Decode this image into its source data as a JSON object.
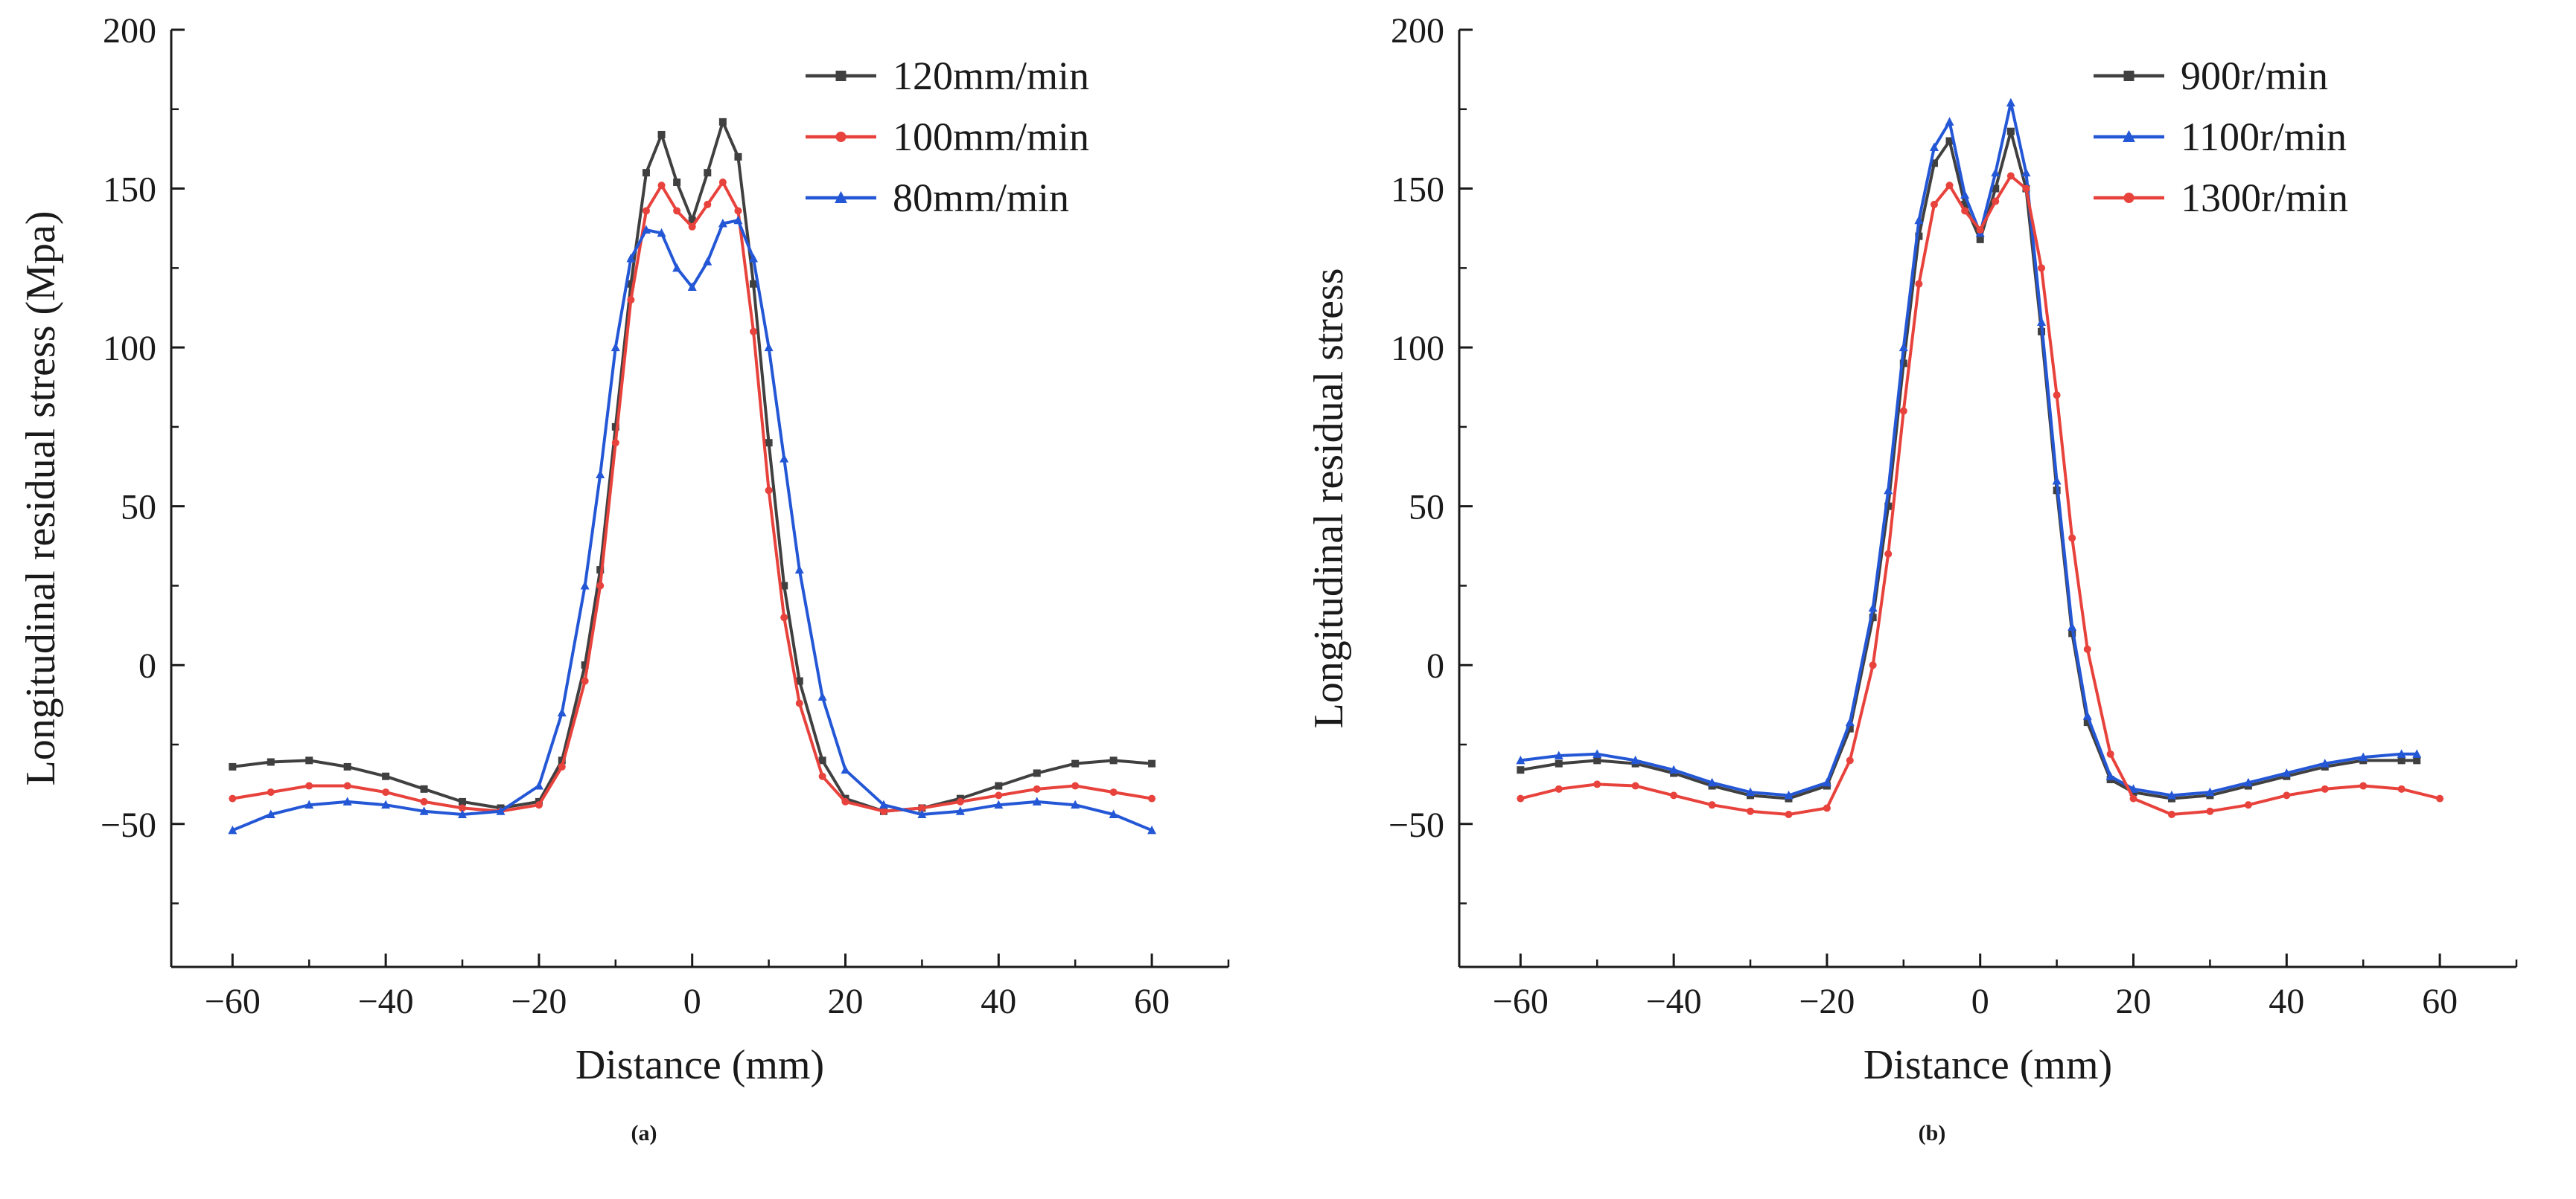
{
  "figure": {
    "background": "#ffffff",
    "text_color": "#1a1a1a",
    "panels": [
      {
        "caption": "(a)"
      },
      {
        "caption": "(b)"
      }
    ]
  },
  "chart_data": [
    {
      "type": "line",
      "title": "",
      "xlabel": "Distance (mm)",
      "ylabel": "Longitudinal residual stress (Mpa)",
      "xlim": [
        -68,
        70
      ],
      "ylim": [
        -95,
        200
      ],
      "xticks": [
        -60,
        -40,
        -20,
        0,
        20,
        40,
        60
      ],
      "yticks": [
        -50,
        0,
        50,
        100,
        150,
        200
      ],
      "x_minor_step": 10,
      "y_minor_step": 25,
      "grid": false,
      "legend_position": "top-right",
      "series": [
        {
          "name": "120mm/min",
          "color": "#404040",
          "marker": "square",
          "x": [
            -60,
            -55,
            -50,
            -45,
            -40,
            -35,
            -30,
            -25,
            -20,
            -17,
            -14,
            -12,
            -10,
            -8,
            -6,
            -4,
            -2,
            0,
            2,
            4,
            6,
            8,
            10,
            12,
            14,
            17,
            20,
            25,
            30,
            35,
            40,
            45,
            50,
            55,
            60
          ],
          "y": [
            -32,
            -30.5,
            -30,
            -32,
            -35,
            -39,
            -43,
            -45,
            -43,
            -30,
            0,
            30,
            75,
            120,
            155,
            167,
            152,
            140,
            155,
            171,
            160,
            120,
            70,
            25,
            -5,
            -30,
            -42,
            -46,
            -45,
            -42,
            -38,
            -34,
            -31,
            -30,
            -31
          ]
        },
        {
          "name": "100mm/min",
          "color": "#e8423c",
          "marker": "circle",
          "x": [
            -60,
            -55,
            -50,
            -45,
            -40,
            -35,
            -30,
            -25,
            -20,
            -17,
            -14,
            -12,
            -10,
            -8,
            -6,
            -4,
            -2,
            0,
            2,
            4,
            6,
            8,
            10,
            12,
            14,
            17,
            20,
            25,
            30,
            35,
            40,
            45,
            50,
            55,
            60
          ],
          "y": [
            -42,
            -40,
            -38,
            -38,
            -40,
            -43,
            -45,
            -46,
            -44,
            -32,
            -5,
            25,
            70,
            115,
            143,
            151,
            143,
            138,
            145,
            152,
            143,
            105,
            55,
            15,
            -12,
            -35,
            -43,
            -46,
            -45,
            -43,
            -41,
            -39,
            -38,
            -40,
            -42
          ]
        },
        {
          "name": "80mm/min",
          "color": "#2457d6",
          "marker": "triangle",
          "x": [
            -60,
            -55,
            -50,
            -45,
            -40,
            -35,
            -30,
            -25,
            -20,
            -17,
            -14,
            -12,
            -10,
            -8,
            -6,
            -4,
            -2,
            0,
            2,
            4,
            6,
            8,
            10,
            12,
            14,
            17,
            20,
            25,
            30,
            35,
            40,
            45,
            50,
            55,
            60
          ],
          "y": [
            -52,
            -47,
            -44,
            -43,
            -44,
            -46,
            -47,
            -46,
            -38,
            -15,
            25,
            60,
            100,
            128,
            137,
            136,
            125,
            119,
            127,
            139,
            140,
            128,
            100,
            65,
            30,
            -10,
            -33,
            -44,
            -47,
            -46,
            -44,
            -43,
            -44,
            -47,
            -52
          ]
        }
      ]
    },
    {
      "type": "line",
      "title": "",
      "xlabel": "Distance (mm)",
      "ylabel": "Longitudinal residual stress",
      "xlim": [
        -68,
        70
      ],
      "ylim": [
        -95,
        200
      ],
      "xticks": [
        -60,
        -40,
        -20,
        0,
        20,
        40,
        60
      ],
      "yticks": [
        -50,
        0,
        50,
        100,
        150,
        200
      ],
      "x_minor_step": 10,
      "y_minor_step": 25,
      "grid": false,
      "legend_position": "top-right",
      "series": [
        {
          "name": "900r/min",
          "color": "#404040",
          "marker": "square",
          "x": [
            -60,
            -55,
            -50,
            -45,
            -40,
            -35,
            -30,
            -25,
            -20,
            -17,
            -14,
            -12,
            -10,
            -8,
            -6,
            -4,
            -2,
            0,
            2,
            4,
            6,
            8,
            10,
            12,
            14,
            17,
            20,
            25,
            30,
            35,
            40,
            45,
            50,
            55,
            57
          ],
          "y": [
            -33,
            -31,
            -30,
            -31,
            -34,
            -38,
            -41,
            -42,
            -38,
            -20,
            15,
            50,
            95,
            135,
            158,
            165,
            145,
            134,
            150,
            168,
            150,
            105,
            55,
            10,
            -18,
            -36,
            -40,
            -42,
            -41,
            -38,
            -35,
            -32,
            -30,
            -30,
            -30
          ]
        },
        {
          "name": "1100r/min",
          "color": "#2457d6",
          "marker": "triangle",
          "x": [
            -60,
            -55,
            -50,
            -45,
            -40,
            -35,
            -30,
            -25,
            -20,
            -17,
            -14,
            -12,
            -10,
            -8,
            -6,
            -4,
            -2,
            0,
            2,
            4,
            6,
            8,
            10,
            12,
            14,
            17,
            20,
            25,
            30,
            35,
            40,
            45,
            50,
            55,
            57
          ],
          "y": [
            -30,
            -28.5,
            -28,
            -30,
            -33,
            -37,
            -40,
            -41,
            -37,
            -18,
            18,
            55,
            100,
            140,
            163,
            171,
            148,
            136,
            155,
            177,
            155,
            108,
            58,
            12,
            -16,
            -35,
            -39,
            -41,
            -40,
            -37,
            -34,
            -31,
            -29,
            -28,
            -28
          ]
        },
        {
          "name": "1300r/min",
          "color": "#e8423c",
          "marker": "circle",
          "x": [
            -60,
            -55,
            -50,
            -45,
            -40,
            -35,
            -30,
            -25,
            -20,
            -17,
            -14,
            -12,
            -10,
            -8,
            -6,
            -4,
            -2,
            0,
            2,
            4,
            6,
            8,
            10,
            12,
            14,
            17,
            20,
            25,
            30,
            35,
            40,
            45,
            50,
            55,
            60
          ],
          "y": [
            -42,
            -39,
            -37.5,
            -38,
            -41,
            -44,
            -46,
            -47,
            -45,
            -30,
            0,
            35,
            80,
            120,
            145,
            151,
            143,
            137,
            146,
            154,
            150,
            125,
            85,
            40,
            5,
            -28,
            -42,
            -47,
            -46,
            -44,
            -41,
            -39,
            -38,
            -39,
            -42
          ]
        }
      ]
    }
  ]
}
